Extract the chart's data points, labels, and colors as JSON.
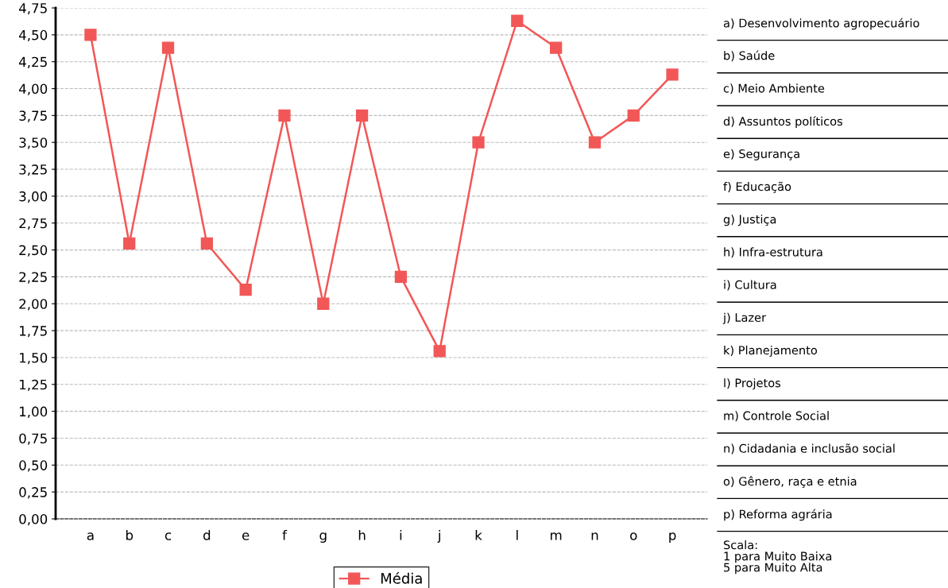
{
  "chart_data": {
    "type": "line",
    "categories": [
      "a",
      "b",
      "c",
      "d",
      "e",
      "f",
      "g",
      "h",
      "i",
      "j",
      "k",
      "l",
      "m",
      "n",
      "o",
      "p"
    ],
    "series": [
      {
        "name": "Média",
        "color": "#f25757",
        "values": [
          4.5,
          2.56,
          4.38,
          2.56,
          2.13,
          3.75,
          2.0,
          3.75,
          2.25,
          1.56,
          3.5,
          4.63,
          4.38,
          3.5,
          3.75,
          4.13
        ]
      }
    ],
    "ylim": [
      0,
      4.75
    ],
    "yticks": [
      {
        "value": 0,
        "label": "0,00"
      },
      {
        "value": 0.25,
        "label": "0,25"
      },
      {
        "value": 0.5,
        "label": "0,50"
      },
      {
        "value": 0.75,
        "label": "0,75"
      },
      {
        "value": 1,
        "label": "1,00"
      },
      {
        "value": 1.25,
        "label": "1,25"
      },
      {
        "value": 1.5,
        "label": "1,50"
      },
      {
        "value": 1.75,
        "label": "1,75"
      },
      {
        "value": 2,
        "label": "2,00"
      },
      {
        "value": 2.25,
        "label": "2,25"
      },
      {
        "value": 2.5,
        "label": "2,50"
      },
      {
        "value": 2.75,
        "label": "2,75"
      },
      {
        "value": 3,
        "label": "3,00"
      },
      {
        "value": 3.25,
        "label": "3,25"
      },
      {
        "value": 3.5,
        "label": "3,50"
      },
      {
        "value": 3.75,
        "label": "3,75"
      },
      {
        "value": 4,
        "label": "4,00"
      },
      {
        "value": 4.25,
        "label": "4,25"
      },
      {
        "value": 4.5,
        "label": "4,50"
      },
      {
        "value": 4.75,
        "label": "4,75"
      }
    ],
    "grid": "y",
    "legend": "bottom",
    "marker": "square",
    "line_style": "solid",
    "annotations": [
      "a) Desenvolvimento agropecuário",
      "b) Saúde",
      "c) Meio Ambiente",
      "d) Assuntos políticos",
      "e) Segurança",
      "f) Educação",
      "g) Justiça",
      "h) Infra-estrutura",
      "i) Cultura",
      "j) Lazer",
      "k) Planejamento",
      "l) Projetos",
      "m) Controle Social",
      "n) Cidadania e inclusão social",
      "o) Gênero, raça e etnia",
      "p) Reforma agrária",
      "Scala:\n1 para Muito Baixa\n5 para Muito Alta"
    ]
  }
}
